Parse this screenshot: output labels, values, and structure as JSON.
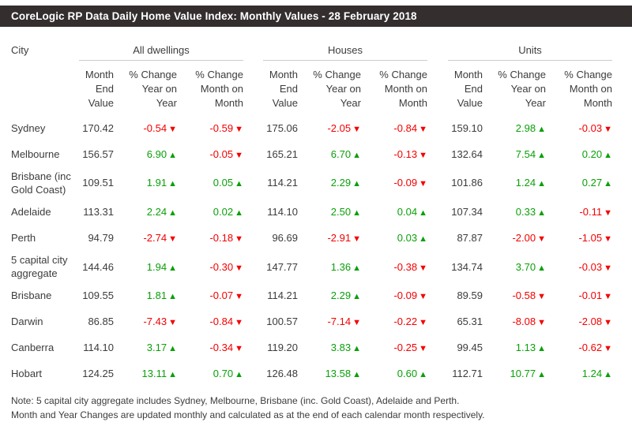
{
  "title": "CoreLogic RP Data Daily Home Value Index: Monthly Values - 28 February 2018",
  "table": {
    "city_header": "City",
    "groups": [
      "All dwellings",
      "Houses",
      "Units"
    ],
    "sub_headers": [
      "Month\nEnd\nValue",
      "% Change\nYear on\nYear",
      "% Change\nMonth on\nMonth"
    ]
  },
  "rows": [
    {
      "city": "Sydney",
      "cells": [
        {
          "v": "170.42"
        },
        {
          "v": "-0.54",
          "d": "down"
        },
        {
          "v": "-0.59",
          "d": "down"
        },
        {
          "v": "175.06"
        },
        {
          "v": "-2.05",
          "d": "down"
        },
        {
          "v": "-0.84",
          "d": "down"
        },
        {
          "v": "159.10"
        },
        {
          "v": "2.98",
          "d": "up"
        },
        {
          "v": "-0.03",
          "d": "down"
        }
      ]
    },
    {
      "city": "Melbourne",
      "cells": [
        {
          "v": "156.57"
        },
        {
          "v": "6.90",
          "d": "up"
        },
        {
          "v": "-0.05",
          "d": "down"
        },
        {
          "v": "165.21"
        },
        {
          "v": "6.70",
          "d": "up"
        },
        {
          "v": "-0.13",
          "d": "down"
        },
        {
          "v": "132.64"
        },
        {
          "v": "7.54",
          "d": "up"
        },
        {
          "v": "0.20",
          "d": "up"
        }
      ]
    },
    {
      "city": "Brisbane (inc Gold Coast)",
      "cells": [
        {
          "v": "109.51"
        },
        {
          "v": "1.91",
          "d": "up"
        },
        {
          "v": "0.05",
          "d": "up"
        },
        {
          "v": "114.21"
        },
        {
          "v": "2.29",
          "d": "up"
        },
        {
          "v": "-0.09",
          "d": "down"
        },
        {
          "v": "101.86"
        },
        {
          "v": "1.24",
          "d": "up"
        },
        {
          "v": "0.27",
          "d": "up"
        }
      ]
    },
    {
      "city": "Adelaide",
      "cells": [
        {
          "v": "113.31"
        },
        {
          "v": "2.24",
          "d": "up"
        },
        {
          "v": "0.02",
          "d": "up"
        },
        {
          "v": "114.10"
        },
        {
          "v": "2.50",
          "d": "up"
        },
        {
          "v": "0.04",
          "d": "up"
        },
        {
          "v": "107.34"
        },
        {
          "v": "0.33",
          "d": "up"
        },
        {
          "v": "-0.11",
          "d": "down"
        }
      ]
    },
    {
      "city": "Perth",
      "cells": [
        {
          "v": "94.79"
        },
        {
          "v": "-2.74",
          "d": "down"
        },
        {
          "v": "-0.18",
          "d": "down"
        },
        {
          "v": "96.69"
        },
        {
          "v": "-2.91",
          "d": "down"
        },
        {
          "v": "0.03",
          "d": "up"
        },
        {
          "v": "87.87"
        },
        {
          "v": "-2.00",
          "d": "down"
        },
        {
          "v": "-1.05",
          "d": "down"
        }
      ]
    },
    {
      "city": "5 capital city aggregate",
      "cells": [
        {
          "v": "144.46"
        },
        {
          "v": "1.94",
          "d": "up"
        },
        {
          "v": "-0.30",
          "d": "down"
        },
        {
          "v": "147.77"
        },
        {
          "v": "1.36",
          "d": "up"
        },
        {
          "v": "-0.38",
          "d": "down"
        },
        {
          "v": "134.74"
        },
        {
          "v": "3.70",
          "d": "up"
        },
        {
          "v": "-0.03",
          "d": "down"
        }
      ]
    },
    {
      "city": "Brisbane",
      "cells": [
        {
          "v": "109.55"
        },
        {
          "v": "1.81",
          "d": "up"
        },
        {
          "v": "-0.07",
          "d": "down"
        },
        {
          "v": "114.21"
        },
        {
          "v": "2.29",
          "d": "up"
        },
        {
          "v": "-0.09",
          "d": "down"
        },
        {
          "v": "89.59"
        },
        {
          "v": "-0.58",
          "d": "down"
        },
        {
          "v": "-0.01",
          "d": "down"
        }
      ]
    },
    {
      "city": "Darwin",
      "cells": [
        {
          "v": "86.85"
        },
        {
          "v": "-7.43",
          "d": "down"
        },
        {
          "v": "-0.84",
          "d": "down"
        },
        {
          "v": "100.57"
        },
        {
          "v": "-7.14",
          "d": "down"
        },
        {
          "v": "-0.22",
          "d": "down"
        },
        {
          "v": "65.31"
        },
        {
          "v": "-8.08",
          "d": "down"
        },
        {
          "v": "-2.08",
          "d": "down"
        }
      ]
    },
    {
      "city": "Canberra",
      "cells": [
        {
          "v": "114.10"
        },
        {
          "v": "3.17",
          "d": "up"
        },
        {
          "v": "-0.34",
          "d": "down"
        },
        {
          "v": "119.20"
        },
        {
          "v": "3.83",
          "d": "up"
        },
        {
          "v": "-0.25",
          "d": "down"
        },
        {
          "v": "99.45"
        },
        {
          "v": "1.13",
          "d": "up"
        },
        {
          "v": "-0.62",
          "d": "down"
        }
      ]
    },
    {
      "city": "Hobart",
      "cells": [
        {
          "v": "124.25"
        },
        {
          "v": "13.11",
          "d": "up"
        },
        {
          "v": "0.70",
          "d": "up"
        },
        {
          "v": "126.48"
        },
        {
          "v": "13.58",
          "d": "up"
        },
        {
          "v": "0.60",
          "d": "up"
        },
        {
          "v": "112.71"
        },
        {
          "v": "10.77",
          "d": "up"
        },
        {
          "v": "1.24",
          "d": "up"
        }
      ]
    }
  ],
  "icons": {
    "up": "▲",
    "down": "▼"
  },
  "note_lines": [
    "Note: 5 capital city aggregate includes Sydney, Melbourne, Brisbane (inc. Gold Coast), Adelaide and Perth.",
    "Month and Year Changes are updated monthly and calculated as at the end of each calendar month respectively."
  ],
  "colors": {
    "positive": "#0aa00a",
    "negative": "#f40000",
    "header_bg": "#342e2f",
    "header_text": "#ffffff",
    "body_text": "#3c3c3c",
    "rule": "#cccccc"
  }
}
